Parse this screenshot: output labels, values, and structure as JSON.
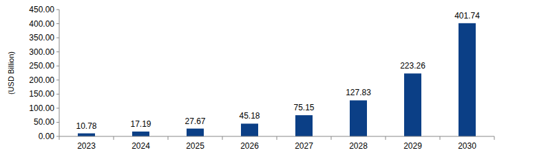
{
  "chart_data": {
    "type": "bar",
    "y_label": "(USD Billion)",
    "categories": [
      "2023",
      "2024",
      "2025",
      "2026",
      "2027",
      "2028",
      "2029",
      "2030"
    ],
    "values": [
      10.78,
      17.19,
      27.67,
      45.18,
      75.15,
      127.83,
      223.26,
      401.74
    ],
    "color": "#0b3f86",
    "ylim": [
      0,
      450
    ],
    "yticks": [
      {
        "value": 0,
        "label": "0.00"
      },
      {
        "value": 50,
        "label": "50.00"
      },
      {
        "value": 100,
        "label": "100.00"
      },
      {
        "value": 150,
        "label": "150.00"
      },
      {
        "value": 200,
        "label": "200.00"
      },
      {
        "value": 250,
        "label": "250.00"
      },
      {
        "value": 300,
        "label": "300.00"
      },
      {
        "value": 350,
        "label": "350.00"
      },
      {
        "value": 400,
        "label": "400.00"
      },
      {
        "value": 450,
        "label": "450.00"
      }
    ],
    "grid": false,
    "data_labels": true
  }
}
